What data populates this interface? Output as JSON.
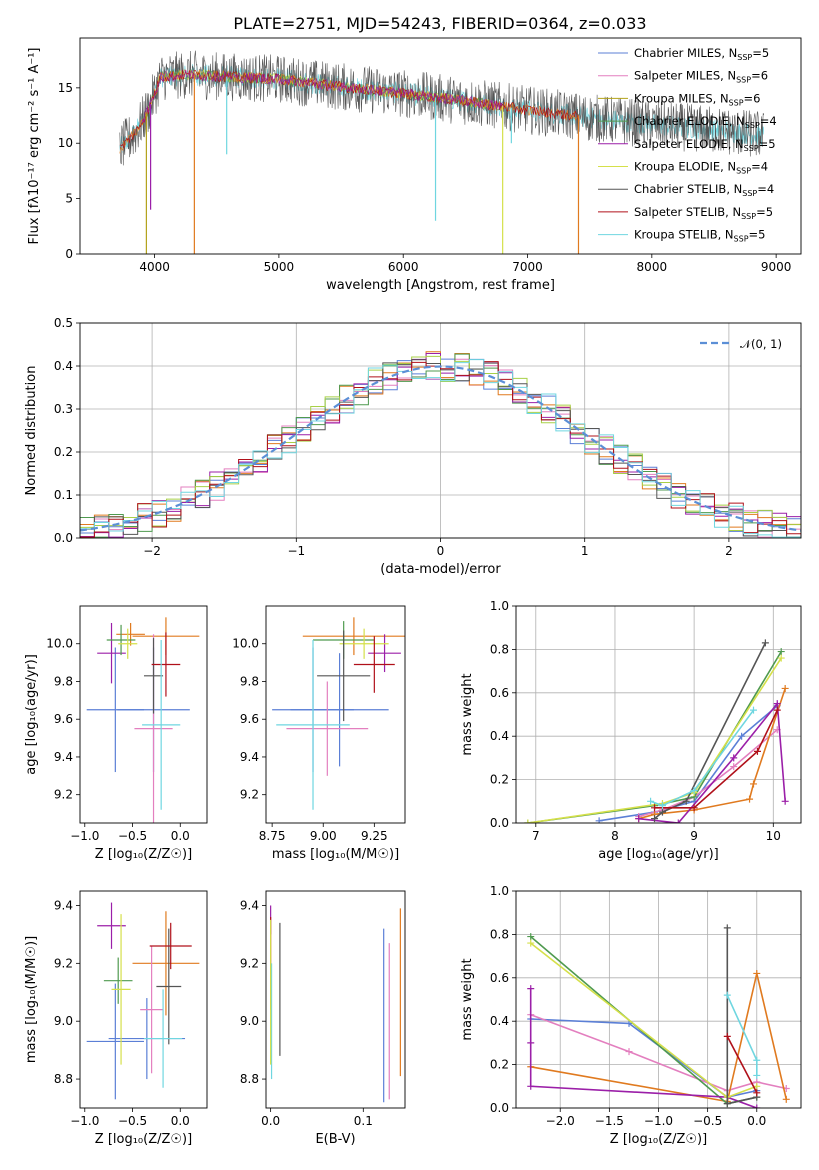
{
  "figure": {
    "title": "PLATE=2751, MJD=54243, FIBERID=0364, z=0.033"
  },
  "colors": {
    "Chabrier MILES": "#5b7fd6",
    "Salpeter MILES": "#e37fbf",
    "Kroupa MILES": "#b3a21a",
    "Chabrier ELODIE": "#4f9a4f",
    "Salpeter ELODIE": "#9b1fa8",
    "Kroupa ELODIE": "#d5e04a",
    "Chabrier STELIB": "#555555",
    "Salpeter STELIB": "#b0101a",
    "Kroupa STELIB": "#6fd6e0",
    "Orange": "#e07a1f",
    "Green2": "#a8d048"
  },
  "chart_data": [
    {
      "id": "spectrum",
      "type": "line",
      "title": "PLATE=2751, MJD=54243, FIBERID=0364, z=0.033",
      "xlabel": "wavelength [Angstrom, rest frame]",
      "ylabel": "Flux [fλ10⁻¹⁷ erg cm⁻² s⁻¹ A⁻¹]",
      "xlim": [
        3400,
        9200
      ],
      "ylim": [
        0,
        19.5
      ],
      "xticks": [
        4000,
        5000,
        6000,
        7000,
        8000,
        9000
      ],
      "yticks": [
        0,
        5,
        10,
        15
      ],
      "grid": false,
      "legend_position": "top-right",
      "legend": [
        {
          "label": "Chabrier MILES, N",
          "sub": "SSP",
          "suffix": "=5",
          "color_key": "Chabrier MILES"
        },
        {
          "label": "Salpeter MILES, N",
          "sub": "SSP",
          "suffix": "=6",
          "color_key": "Salpeter MILES"
        },
        {
          "label": "Kroupa MILES, N",
          "sub": "SSP",
          "suffix": "=6",
          "color_key": "Kroupa MILES"
        },
        {
          "label": "Chabrier ELODIE, N",
          "sub": "SSP",
          "suffix": "=4",
          "color_key": "Chabrier ELODIE"
        },
        {
          "label": "Salpeter ELODIE, N",
          "sub": "SSP",
          "suffix": "=5",
          "color_key": "Salpeter ELODIE"
        },
        {
          "label": "Kroupa ELODIE, N",
          "sub": "SSP",
          "suffix": "=4",
          "color_key": "Kroupa ELODIE"
        },
        {
          "label": "Chabrier STELIB, N",
          "sub": "SSP",
          "suffix": "=4",
          "color_key": "Chabrier STELIB"
        },
        {
          "label": "Salpeter STELIB, N",
          "sub": "SSP",
          "suffix": "=5",
          "color_key": "Salpeter STELIB"
        },
        {
          "label": "Kroupa STELIB, N",
          "sub": "SSP",
          "suffix": "=5",
          "color_key": "Kroupa STELIB"
        }
      ],
      "continuum": [
        [
          3720,
          9.5
        ],
        [
          3850,
          11
        ],
        [
          3950,
          13
        ],
        [
          4050,
          16
        ],
        [
          4300,
          16.2
        ],
        [
          4600,
          16
        ],
        [
          5000,
          15.8
        ],
        [
          5500,
          15.1
        ],
        [
          6000,
          14.5
        ],
        [
          6500,
          13.8
        ],
        [
          7000,
          13.0
        ],
        [
          7500,
          12.3
        ],
        [
          8000,
          11.7
        ],
        [
          8500,
          11.2
        ],
        [
          8900,
          10.7
        ]
      ],
      "series_ranges": [
        {
          "color_key": "Kroupa STELIB",
          "range": [
            3720,
            8900
          ]
        },
        {
          "color_key": "Chabrier STELIB",
          "range": [
            3720,
            8900
          ]
        },
        {
          "color_key": "Kroupa ELODIE",
          "range": [
            3900,
            6800
          ]
        },
        {
          "color_key": "Chabrier ELODIE",
          "range": [
            3900,
            6800
          ]
        },
        {
          "color_key": "Orange",
          "range": [
            3720,
            7420
          ]
        },
        {
          "color_key": "Salpeter STELIB",
          "range": [
            3720,
            7420
          ]
        },
        {
          "color_key": "Salpeter ELODIE",
          "range": [
            3900,
            6800
          ]
        }
      ],
      "absorption_lines": [
        {
          "x": 3934,
          "depth_to": 0,
          "color_key": "Kroupa MILES"
        },
        {
          "x": 3968,
          "depth_to": 4,
          "color_key": "Salpeter ELODIE"
        },
        {
          "x": 4320,
          "depth_to": 0,
          "color_key": "Orange"
        },
        {
          "x": 4580,
          "depth_to": 9,
          "color_key": "Kroupa STELIB"
        },
        {
          "x": 6260,
          "depth_to": 3,
          "color_key": "Kroupa STELIB"
        },
        {
          "x": 6800,
          "depth_to": 0,
          "color_key": "Kroupa ELODIE"
        },
        {
          "x": 6870,
          "depth_to": 10,
          "color_key": "Kroupa STELIB"
        },
        {
          "x": 7410,
          "depth_to": 0,
          "color_key": "Orange"
        }
      ]
    },
    {
      "id": "residuals",
      "type": "histogram",
      "xlabel": "(data-model)/error",
      "ylabel": "Normed distribution",
      "xlim": [
        -2.5,
        2.5
      ],
      "ylim": [
        0,
        0.5
      ],
      "xticks": [
        -2,
        -1,
        0,
        1,
        2
      ],
      "yticks": [
        0.0,
        0.1,
        0.2,
        0.3,
        0.4,
        0.5
      ],
      "grid": true,
      "legend_position": "top-right",
      "legend": [
        {
          "label": "𝒩(0, 1)",
          "color": "#5b8fd6",
          "style": "dashed"
        }
      ],
      "bin_edges_start": -2.5,
      "bin_width": 0.1,
      "hist_color_keys": [
        "Chabrier MILES",
        "Salpeter MILES",
        "Orange",
        "Chabrier ELODIE",
        "Salpeter ELODIE",
        "Green2",
        "Chabrier STELIB",
        "Salpeter STELIB",
        "Kroupa STELIB"
      ]
    },
    {
      "id": "age_vs_Z",
      "type": "errorbar",
      "xlabel": "Z [log₁₀(Z/Z☉)]",
      "ylabel": "age  [log₁₀(age/yr)]",
      "xlim": [
        -1.05,
        0.28
      ],
      "ylim": [
        9.05,
        10.2
      ],
      "xticks": [
        -1.0,
        -0.5,
        0.0
      ],
      "yticks": [
        9.2,
        9.4,
        9.6,
        9.8,
        10.0
      ],
      "points": [
        {
          "x": -0.68,
          "xerr": 0.3,
          "y": 9.65,
          "yerr": 0.33,
          "color_key": "Chabrier MILES"
        },
        {
          "x": -0.28,
          "xerr": 0.38,
          "y": 9.65,
          "yerr": 0.33,
          "color_key": "Chabrier MILES"
        },
        {
          "x": -0.52,
          "xerr": 0.15,
          "y": 10.05,
          "yerr": 0.06,
          "color_key": "Orange"
        },
        {
          "x": -0.15,
          "xerr": 0.35,
          "y": 10.04,
          "yerr": 0.1,
          "color_key": "Orange"
        },
        {
          "x": -0.72,
          "xerr": 0.15,
          "y": 9.95,
          "yerr": 0.16,
          "color_key": "Salpeter ELODIE"
        },
        {
          "x": -0.62,
          "xerr": 0.15,
          "y": 10.02,
          "yerr": 0.08,
          "color_key": "Chabrier ELODIE"
        },
        {
          "x": -0.55,
          "xerr": 0.1,
          "y": 10.0,
          "yerr": 0.08,
          "color_key": "Kroupa ELODIE"
        },
        {
          "x": -0.28,
          "xerr": 0.2,
          "y": 9.55,
          "yerr": 0.5,
          "color_key": "Salpeter MILES"
        },
        {
          "x": -0.28,
          "xerr": 0.1,
          "y": 9.83,
          "yerr": 0.2,
          "color_key": "Chabrier STELIB"
        },
        {
          "x": -0.15,
          "xerr": 0.15,
          "y": 9.89,
          "yerr": 0.17,
          "color_key": "Salpeter STELIB"
        },
        {
          "x": -0.2,
          "xerr": 0.2,
          "y": 9.57,
          "yerr": 0.45,
          "color_key": "Kroupa STELIB"
        }
      ]
    },
    {
      "id": "age_vs_mass",
      "type": "errorbar",
      "xlabel": "mass [log₁₀(M/M☉)]",
      "ylabel": "",
      "xlim": [
        8.72,
        9.4
      ],
      "ylim": [
        9.05,
        10.2
      ],
      "xticks": [
        8.75,
        9.0,
        9.25
      ],
      "yticks": [
        9.2,
        9.4,
        9.6,
        9.8,
        10.0
      ],
      "points": [
        {
          "x": 8.95,
          "xerr": 0.2,
          "y": 9.65,
          "yerr": 0.33,
          "color_key": "Chabrier MILES"
        },
        {
          "x": 9.08,
          "xerr": 0.24,
          "y": 9.65,
          "yerr": 0.3,
          "color_key": "Chabrier MILES"
        },
        {
          "x": 9.15,
          "xerr": 0.25,
          "y": 10.04,
          "yerr": 0.1,
          "color_key": "Orange"
        },
        {
          "x": 9.1,
          "xerr": 0.15,
          "y": 10.02,
          "yerr": 0.1,
          "color_key": "Chabrier ELODIE"
        },
        {
          "x": 9.3,
          "xerr": 0.08,
          "y": 9.95,
          "yerr": 0.1,
          "color_key": "Salpeter ELODIE"
        },
        {
          "x": 9.2,
          "xerr": 0.12,
          "y": 10.0,
          "yerr": 0.08,
          "color_key": "Kroupa ELODIE"
        },
        {
          "x": 9.02,
          "xerr": 0.2,
          "y": 9.55,
          "yerr": 0.25,
          "color_key": "Salpeter MILES"
        },
        {
          "x": 9.1,
          "xerr": 0.13,
          "y": 9.83,
          "yerr": 0.24,
          "color_key": "Chabrier STELIB"
        },
        {
          "x": 9.25,
          "xerr": 0.1,
          "y": 9.89,
          "yerr": 0.15,
          "color_key": "Salpeter STELIB"
        },
        {
          "x": 8.95,
          "xerr": 0.18,
          "y": 9.57,
          "yerr": 0.45,
          "color_key": "Kroupa STELIB"
        }
      ]
    },
    {
      "id": "weight_vs_age",
      "type": "line",
      "xlabel": "age  [log₁₀(age/yr)]",
      "ylabel": "mass weight",
      "xlim": [
        6.75,
        10.35
      ],
      "ylim": [
        0,
        1
      ],
      "xticks": [
        7,
        8,
        9,
        10
      ],
      "yticks": [
        0.0,
        0.2,
        0.4,
        0.6,
        0.8,
        1.0
      ],
      "grid": true,
      "series": [
        {
          "color_key": "Chabrier MILES",
          "x": [
            7.8,
            8.5,
            9.0,
            9.6,
            10.05
          ],
          "y": [
            0.01,
            0.05,
            0.1,
            0.4,
            0.54
          ]
        },
        {
          "color_key": "Salpeter MILES",
          "x": [
            8.3,
            8.6,
            9.0,
            9.5,
            10.05
          ],
          "y": [
            0.03,
            0.06,
            0.12,
            0.26,
            0.43
          ]
        },
        {
          "color_key": "Orange",
          "x": [
            8.3,
            8.5,
            9.0,
            9.7,
            9.75,
            10.15
          ],
          "y": [
            0.02,
            0.04,
            0.06,
            0.11,
            0.18,
            0.62
          ]
        },
        {
          "color_key": "Chabrier ELODIE",
          "x": [
            6.9,
            8.5,
            9.0,
            10.1
          ],
          "y": [
            0.0,
            0.08,
            0.12,
            0.79
          ]
        },
        {
          "color_key": "Salpeter ELODIE",
          "x": [
            8.3,
            8.8,
            9.5,
            10.05,
            10.15
          ],
          "y": [
            0.02,
            0.0,
            0.3,
            0.55,
            0.1
          ]
        },
        {
          "color_key": "Kroupa ELODIE",
          "x": [
            6.9,
            8.6,
            9.0,
            10.1
          ],
          "y": [
            0.0,
            0.09,
            0.14,
            0.76
          ]
        },
        {
          "color_key": "Chabrier STELIB",
          "x": [
            8.5,
            8.6,
            8.9,
            9.9
          ],
          "y": [
            0.02,
            0.05,
            0.1,
            0.83
          ]
        },
        {
          "color_key": "Salpeter STELIB",
          "x": [
            8.5,
            9.0,
            9.8,
            10.05
          ],
          "y": [
            0.07,
            0.07,
            0.33,
            0.52
          ]
        },
        {
          "color_key": "Kroupa STELIB",
          "x": [
            8.45,
            8.6,
            9.0,
            9.75
          ],
          "y": [
            0.1,
            0.08,
            0.15,
            0.52
          ]
        }
      ]
    },
    {
      "id": "mass_vs_Z",
      "type": "errorbar",
      "xlabel": "Z [log₁₀(Z/Z☉)]",
      "ylabel": "mass [log₁₀(M/M☉)]",
      "xlim": [
        -1.05,
        0.28
      ],
      "ylim": [
        8.7,
        9.45
      ],
      "xticks": [
        -1.0,
        -0.5,
        0.0
      ],
      "yticks": [
        8.8,
        9.0,
        9.2,
        9.4
      ],
      "points": [
        {
          "x": -0.68,
          "xerr": 0.3,
          "y": 8.93,
          "yerr": 0.2,
          "color_key": "Chabrier MILES"
        },
        {
          "x": -0.35,
          "xerr": 0.4,
          "y": 8.94,
          "yerr": 0.14,
          "color_key": "Chabrier MILES"
        },
        {
          "x": -0.15,
          "xerr": 0.35,
          "y": 9.2,
          "yerr": 0.18,
          "color_key": "Orange"
        },
        {
          "x": -0.72,
          "xerr": 0.15,
          "y": 9.33,
          "yerr": 0.08,
          "color_key": "Salpeter ELODIE"
        },
        {
          "x": -0.65,
          "xerr": 0.15,
          "y": 9.14,
          "yerr": 0.08,
          "color_key": "Chabrier ELODIE"
        },
        {
          "x": -0.62,
          "xerr": 0.1,
          "y": 9.11,
          "yerr": 0.26,
          "color_key": "Kroupa ELODIE"
        },
        {
          "x": -0.3,
          "xerr": 0.12,
          "y": 9.04,
          "yerr": 0.22,
          "color_key": "Salpeter MILES"
        },
        {
          "x": -0.12,
          "xerr": 0.13,
          "y": 9.12,
          "yerr": 0.2,
          "color_key": "Chabrier STELIB"
        },
        {
          "x": -0.1,
          "xerr": 0.22,
          "y": 9.26,
          "yerr": 0.08,
          "color_key": "Salpeter STELIB"
        },
        {
          "x": -0.18,
          "xerr": 0.2,
          "y": 8.94,
          "yerr": 0.17,
          "color_key": "Kroupa STELIB"
        }
      ]
    },
    {
      "id": "mass_vs_EBV",
      "type": "errorbar",
      "xlabel": "E(B-V)",
      "ylabel": "",
      "xlim": [
        -0.005,
        0.145
      ],
      "ylim": [
        8.7,
        9.45
      ],
      "xticks": [
        0.0,
        0.1
      ],
      "yticks": [
        8.8,
        9.0,
        9.2,
        9.4
      ],
      "points": [
        {
          "x": 0.0,
          "xerr": 0,
          "y": 9.35,
          "yerr": 0.05,
          "color_key": "Salpeter ELODIE"
        },
        {
          "x": 0.0,
          "xerr": 0,
          "y": 9.2,
          "yerr": 0.16,
          "color_key": "Salpeter STELIB"
        },
        {
          "x": 0.001,
          "xerr": 0,
          "y": 9.0,
          "yerr": 0.2,
          "color_key": "Kroupa STELIB"
        },
        {
          "x": 0.0,
          "xerr": 0,
          "y": 9.1,
          "yerr": 0.25,
          "color_key": "Kroupa ELODIE"
        },
        {
          "x": 0.01,
          "xerr": 0,
          "y": 9.11,
          "yerr": 0.23,
          "color_key": "Chabrier STELIB"
        },
        {
          "x": 0.122,
          "xerr": 0,
          "y": 9.02,
          "yerr": 0.3,
          "color_key": "Chabrier MILES"
        },
        {
          "x": 0.128,
          "xerr": 0,
          "y": 9.0,
          "yerr": 0.27,
          "color_key": "Salpeter MILES"
        },
        {
          "x": 0.14,
          "xerr": 0,
          "y": 9.1,
          "yerr": 0.29,
          "color_key": "Orange"
        }
      ]
    },
    {
      "id": "weight_vs_Z",
      "type": "line",
      "xlabel": "Z [log₁₀(Z/Z☉)]",
      "ylabel": "mass weight",
      "xlim": [
        -2.45,
        0.45
      ],
      "ylim": [
        0,
        1
      ],
      "xticks": [
        -2.0,
        -1.5,
        -1.0,
        -0.5,
        0.0
      ],
      "yticks": [
        0.0,
        0.2,
        0.4,
        0.6,
        0.8,
        1.0
      ],
      "grid": true,
      "series": [
        {
          "color_key": "Chabrier MILES",
          "x": [
            -2.3,
            -1.3,
            -0.3,
            0.0
          ],
          "y": [
            0.41,
            0.39,
            0.05,
            0.08
          ]
        },
        {
          "color_key": "Salpeter MILES",
          "x": [
            -2.3,
            -1.3,
            -0.3,
            0.0,
            0.3
          ],
          "y": [
            0.43,
            0.26,
            0.08,
            0.12,
            0.09
          ]
        },
        {
          "color_key": "Orange",
          "x": [
            -2.3,
            -0.3,
            0.0,
            0.3
          ],
          "y": [
            0.19,
            0.03,
            0.62,
            0.04
          ]
        },
        {
          "color_key": "Chabrier ELODIE",
          "x": [
            -2.3,
            -0.3,
            0.0
          ],
          "y": [
            0.79,
            0.02,
            0.05
          ]
        },
        {
          "color_key": "Salpeter ELODIE",
          "x": [
            -2.3,
            -2.3,
            -2.3,
            -0.3,
            0.0
          ],
          "y": [
            0.55,
            0.3,
            0.1,
            0.05,
            0.0
          ]
        },
        {
          "color_key": "Kroupa ELODIE",
          "x": [
            -2.3,
            -0.3,
            0.0
          ],
          "y": [
            0.76,
            0.05,
            0.1
          ]
        },
        {
          "color_key": "Chabrier STELIB",
          "x": [
            -0.3,
            -0.3,
            0.0
          ],
          "y": [
            0.83,
            0.02,
            0.05
          ]
        },
        {
          "color_key": "Salpeter STELIB",
          "x": [
            -0.3,
            0.0
          ],
          "y": [
            0.33,
            0.07
          ]
        },
        {
          "color_key": "Kroupa STELIB",
          "x": [
            -0.3,
            0.0,
            0.0
          ],
          "y": [
            0.52,
            0.22,
            0.15
          ]
        }
      ]
    }
  ]
}
